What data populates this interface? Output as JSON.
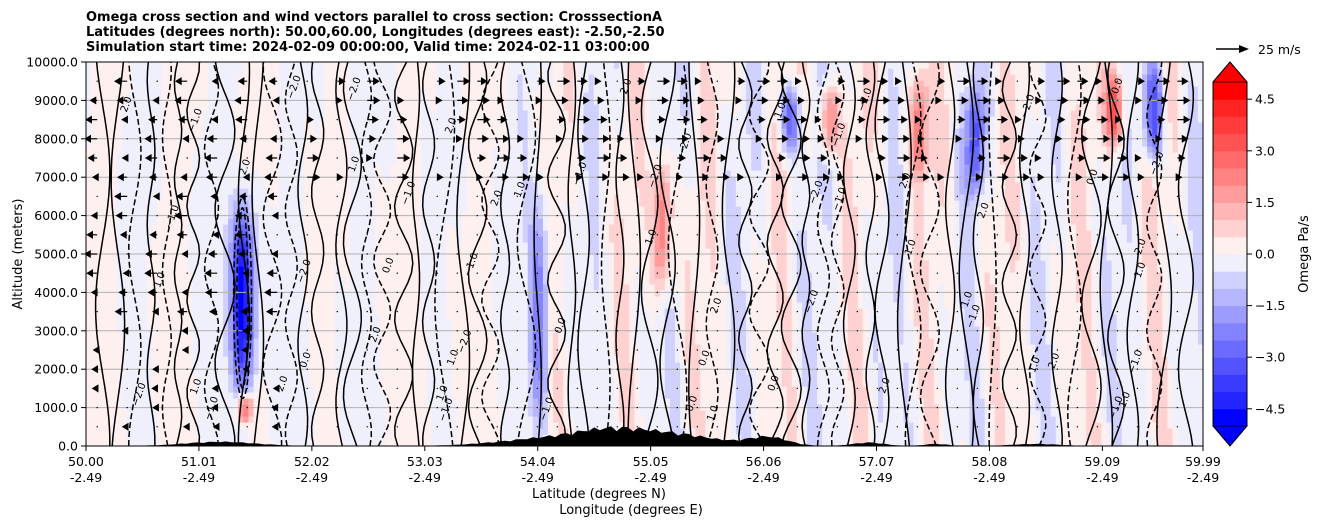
{
  "chart_data": {
    "type": "contour",
    "title_lines": [
      "Omega cross section and wind vectors parallel to cross section: CrosssectionA",
      "Latitudes (degrees north): 50.00,60.00, Longitudes (degrees east): -2.50,-2.50",
      "Simulation start time: 2024-02-09 00:00:00, Valid time: 2024-02-11 03:00:00"
    ],
    "ylabel": "Altitude (meters)",
    "xlabel_lines": [
      "Latitude (degrees N)",
      "Longitude (degrees E)"
    ],
    "ylim": [
      0,
      10000
    ],
    "xlim": [
      50.0,
      59.99
    ],
    "yticks": [
      {
        "value": 0,
        "label": "0.0"
      },
      {
        "value": 1000,
        "label": "1000.0"
      },
      {
        "value": 2000,
        "label": "2000.0"
      },
      {
        "value": 3000,
        "label": "3000.0"
      },
      {
        "value": 4000,
        "label": "4000.0"
      },
      {
        "value": 5000,
        "label": "5000.0"
      },
      {
        "value": 6000,
        "label": "6000.0"
      },
      {
        "value": 7000,
        "label": "7000.0"
      },
      {
        "value": 8000,
        "label": "8000.0"
      },
      {
        "value": 9000,
        "label": "9000.0"
      },
      {
        "value": 10000,
        "label": "10000.0"
      }
    ],
    "xticks": [
      {
        "value": 50.0,
        "lat": "50.00",
        "lon": "-2.49"
      },
      {
        "value": 51.01,
        "lat": "51.01",
        "lon": "-2.49"
      },
      {
        "value": 52.02,
        "lat": "52.02",
        "lon": "-2.49"
      },
      {
        "value": 53.03,
        "lat": "53.03",
        "lon": "-2.49"
      },
      {
        "value": 54.04,
        "lat": "54.04",
        "lon": "-2.49"
      },
      {
        "value": 55.05,
        "lat": "55.05",
        "lon": "-2.49"
      },
      {
        "value": 56.06,
        "lat": "56.06",
        "lon": "-2.49"
      },
      {
        "value": 57.07,
        "lat": "57.07",
        "lon": "-2.49"
      },
      {
        "value": 58.08,
        "lat": "58.08",
        "lon": "-2.49"
      },
      {
        "value": 59.09,
        "lat": "59.09",
        "lon": "-2.49"
      },
      {
        "value": 59.99,
        "lat": "59.99",
        "lon": "-2.49"
      }
    ],
    "colorbar": {
      "label": "Omega Pa/s",
      "range": [
        -5,
        5
      ],
      "levels": 20,
      "ticks": [
        {
          "value": 4.5,
          "label": "4.5"
        },
        {
          "value": 3.0,
          "label": "3.0"
        },
        {
          "value": 1.5,
          "label": "1.5"
        },
        {
          "value": 0.0,
          "label": "0.0"
        },
        {
          "value": -1.5,
          "label": "−1.5"
        },
        {
          "value": -3.0,
          "label": "−3.0"
        },
        {
          "value": -4.5,
          "label": "−4.5"
        }
      ],
      "high_color": "#ff0000",
      "low_color": "#0000ff",
      "mid_color": "#ffffff"
    },
    "quiver_key": {
      "label": "25 m/s",
      "speed": 25
    },
    "contour_label_values": [
      "0.0",
      "1.0",
      "−1.0",
      "2.0",
      "−2.0"
    ],
    "features": {
      "strong_ascent_band": {
        "x": 51.4,
        "ymin": 1500,
        "ymax": 6200,
        "omega": -5.0
      },
      "strong_descent_near_surface": {
        "x": 51.42,
        "ymin": 600,
        "ymax": 1400,
        "omega": 3.0
      },
      "descent_bands": [
        {
          "x": 55.15,
          "ymin": 4000,
          "ymax": 7500,
          "omega": 3.0
        },
        {
          "x": 56.65,
          "ymin": 7600,
          "ymax": 9400,
          "omega": 2.5
        },
        {
          "x": 57.45,
          "ymin": 7000,
          "ymax": 9800,
          "omega": 2.5
        },
        {
          "x": 59.2,
          "ymin": 7800,
          "ymax": 9800,
          "omega": 3.5
        }
      ],
      "ascent_bands": [
        {
          "x": 54.05,
          "ymin": 500,
          "ymax": 6500,
          "omega": -2.5
        },
        {
          "x": 56.3,
          "ymin": 7600,
          "ymax": 9400,
          "omega": -3.0
        },
        {
          "x": 57.95,
          "ymin": 6600,
          "ymax": 9300,
          "omega": -3.0
        },
        {
          "x": 59.55,
          "ymin": 7500,
          "ymax": 10000,
          "omega": -3.5
        }
      ]
    },
    "wind_vector_direction": "leftward for latitudes < 51.8, rightward beyond"
  }
}
